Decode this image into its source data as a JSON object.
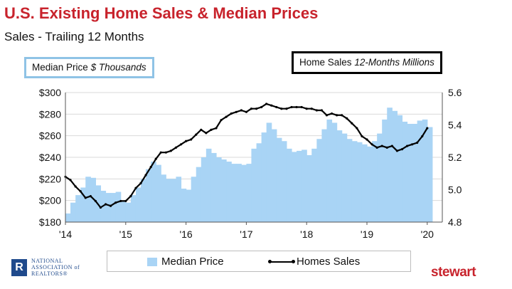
{
  "title": "U.S. Existing Home Sales & Median Prices",
  "subtitle": "Sales - Trailing 12 Months",
  "left_box": {
    "main": "Median Price",
    "italic": "$ Thousands"
  },
  "right_box": {
    "main": "Home Sales",
    "italic": "12-Months Millions"
  },
  "legend": {
    "area_label": "Median Price",
    "line_label": "Homes Sales"
  },
  "footer": {
    "nar_logo_letter": "R",
    "nar_lines": [
      "NATIONAL",
      "ASSOCIATION of",
      "REALTORS®"
    ],
    "stewart": "stewart"
  },
  "colors": {
    "title": "#c8232c",
    "area": "#a9d4f5",
    "line": "#000000",
    "stewart": "#c8232c"
  },
  "chart_data": {
    "type": "area+line",
    "x_tick_labels": [
      "'14",
      "'15",
      "'16",
      "'17",
      "'18",
      "'19",
      "'20"
    ],
    "x_range": [
      2014.0,
      2020.25
    ],
    "y_left": {
      "label": "Median Price $ Thousands",
      "range": [
        180,
        300
      ],
      "ticks": [
        180,
        200,
        220,
        240,
        260,
        280,
        300
      ],
      "format": "$"
    },
    "y_right": {
      "label": "Home Sales 12-Months Millions",
      "range": [
        4.8,
        5.6
      ],
      "ticks": [
        4.8,
        5.0,
        5.2,
        5.4,
        5.6
      ]
    },
    "grid": "horizontal",
    "series": [
      {
        "name": "Median Price",
        "axis": "left",
        "kind": "area",
        "x": [
          2014.0,
          2014.083,
          2014.167,
          2014.25,
          2014.333,
          2014.417,
          2014.5,
          2014.583,
          2014.667,
          2014.75,
          2014.833,
          2014.917,
          2015.0,
          2015.083,
          2015.167,
          2015.25,
          2015.333,
          2015.417,
          2015.5,
          2015.583,
          2015.667,
          2015.75,
          2015.833,
          2015.917,
          2016.0,
          2016.083,
          2016.167,
          2016.25,
          2016.333,
          2016.417,
          2016.5,
          2016.583,
          2016.667,
          2016.75,
          2016.833,
          2016.917,
          2017.0,
          2017.083,
          2017.167,
          2017.25,
          2017.333,
          2017.417,
          2017.5,
          2017.583,
          2017.667,
          2017.75,
          2017.833,
          2017.917,
          2018.0,
          2018.083,
          2018.167,
          2018.25,
          2018.333,
          2018.417,
          2018.5,
          2018.583,
          2018.667,
          2018.75,
          2018.833,
          2018.917,
          2019.0,
          2019.083,
          2019.167,
          2019.25,
          2019.333,
          2019.417,
          2019.5,
          2019.583,
          2019.667,
          2019.75,
          2019.833,
          2019.917,
          2020.0
        ],
        "values": [
          188,
          198,
          205,
          212,
          222,
          221,
          214,
          209,
          207,
          207,
          208,
          200,
          198,
          205,
          212,
          220,
          229,
          236,
          233,
          224,
          220,
          220,
          222,
          211,
          210,
          222,
          231,
          240,
          248,
          244,
          240,
          238,
          236,
          234,
          234,
          233,
          234,
          248,
          253,
          263,
          272,
          266,
          258,
          255,
          248,
          245,
          246,
          247,
          242,
          248,
          257,
          266,
          275,
          272,
          265,
          262,
          257,
          255,
          254,
          252,
          250,
          255,
          262,
          275,
          286,
          283,
          279,
          273,
          271,
          271,
          274,
          275,
          268
        ]
      },
      {
        "name": "Homes Sales",
        "axis": "right",
        "kind": "line",
        "x": [
          2014.0,
          2014.083,
          2014.167,
          2014.25,
          2014.333,
          2014.417,
          2014.5,
          2014.583,
          2014.667,
          2014.75,
          2014.833,
          2014.917,
          2015.0,
          2015.083,
          2015.167,
          2015.25,
          2015.333,
          2015.417,
          2015.5,
          2015.583,
          2015.667,
          2015.75,
          2015.833,
          2015.917,
          2016.0,
          2016.083,
          2016.167,
          2016.25,
          2016.333,
          2016.417,
          2016.5,
          2016.583,
          2016.667,
          2016.75,
          2016.833,
          2016.917,
          2017.0,
          2017.083,
          2017.167,
          2017.25,
          2017.333,
          2017.417,
          2017.5,
          2017.583,
          2017.667,
          2017.75,
          2017.833,
          2017.917,
          2018.0,
          2018.083,
          2018.167,
          2018.25,
          2018.333,
          2018.417,
          2018.5,
          2018.583,
          2018.667,
          2018.75,
          2018.833,
          2018.917,
          2019.0,
          2019.083,
          2019.167,
          2019.25,
          2019.333,
          2019.417,
          2019.5,
          2019.583,
          2019.667,
          2019.75,
          2019.833,
          2019.917,
          2020.0
        ],
        "values": [
          5.08,
          5.06,
          5.02,
          4.99,
          4.95,
          4.96,
          4.93,
          4.89,
          4.91,
          4.9,
          4.92,
          4.93,
          4.93,
          4.96,
          5.01,
          5.04,
          5.09,
          5.14,
          5.19,
          5.23,
          5.23,
          5.24,
          5.26,
          5.28,
          5.3,
          5.31,
          5.34,
          5.37,
          5.35,
          5.37,
          5.38,
          5.43,
          5.45,
          5.47,
          5.48,
          5.49,
          5.48,
          5.5,
          5.5,
          5.51,
          5.53,
          5.52,
          5.51,
          5.5,
          5.5,
          5.51,
          5.51,
          5.51,
          5.5,
          5.5,
          5.49,
          5.49,
          5.46,
          5.47,
          5.46,
          5.46,
          5.44,
          5.41,
          5.38,
          5.33,
          5.31,
          5.28,
          5.26,
          5.27,
          5.26,
          5.27,
          5.24,
          5.25,
          5.27,
          5.28,
          5.29,
          5.33,
          5.38
        ]
      }
    ]
  }
}
